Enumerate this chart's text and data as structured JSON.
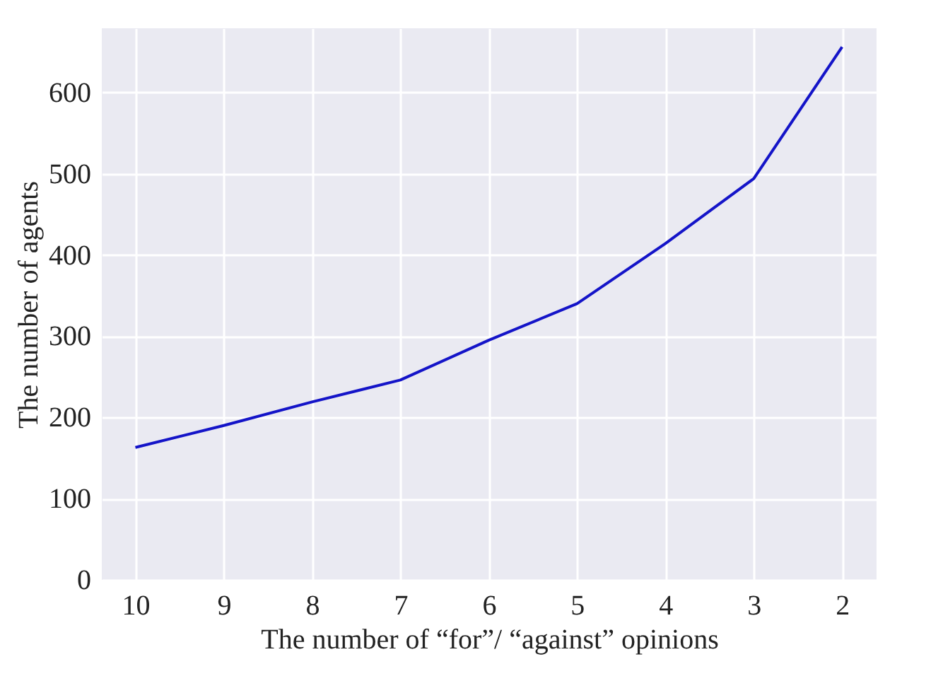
{
  "chart_data": {
    "type": "line",
    "xlabel": "The number of “for”/ “against” opinions",
    "ylabel": "The number of agents",
    "x": [
      10,
      9,
      8,
      7,
      6,
      5,
      4,
      3,
      2
    ],
    "series": [
      {
        "color": "#1414c8",
        "values": [
          163,
          190,
          219,
          246,
          295,
          340,
          414,
          494,
          656
        ]
      }
    ],
    "xlim": [
      10.38,
      1.61
    ],
    "xticks": [
      10,
      9,
      8,
      7,
      6,
      5,
      4,
      3,
      2
    ],
    "ylim": [
      0,
      679
    ],
    "yticks": [
      0,
      100,
      200,
      300,
      400,
      500,
      600
    ],
    "grid": true,
    "marker": "none",
    "line_style": "solid"
  }
}
